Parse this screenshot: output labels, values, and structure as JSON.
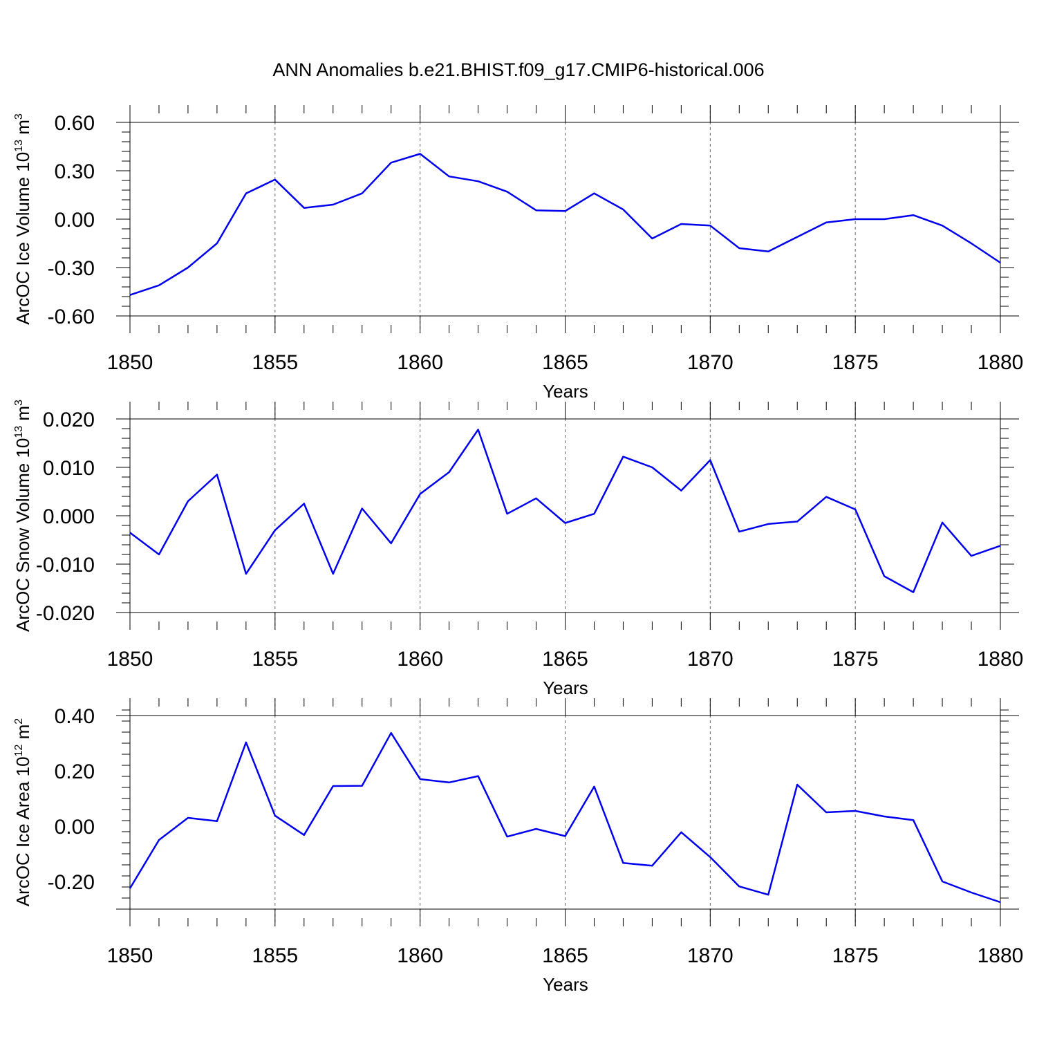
{
  "title": "ANN Anomalies b.e21.BHIST.f09_g17.CMIP6-historical.006",
  "colors": {
    "line": "#0000ee",
    "axis": "#000000",
    "grid": "#666666"
  },
  "chart_data": [
    {
      "type": "line",
      "ylabel_main": "ArcOC Ice Volume 10",
      "ylabel_exp": "13",
      "ylabel_unit": "m",
      "ylabel_unit_exp": "3",
      "xlabel": "Years",
      "xlim": [
        1850,
        1880
      ],
      "ylim": [
        -0.6,
        0.6
      ],
      "yticks": [
        "0.60",
        "0.30",
        "0.00",
        "-0.30",
        "-0.60"
      ],
      "ytick_values": [
        0.6,
        0.3,
        0.0,
        -0.3,
        -0.6
      ],
      "xticks": [
        "1850",
        "1855",
        "1860",
        "1865",
        "1870",
        "1875",
        "1880"
      ],
      "grid": "vertical dashed at major x ticks",
      "x": [
        1850,
        1851,
        1852,
        1853,
        1854,
        1855,
        1856,
        1857,
        1858,
        1859,
        1860,
        1861,
        1862,
        1863,
        1864,
        1865,
        1866,
        1867,
        1868,
        1869,
        1870,
        1871,
        1872,
        1873,
        1874,
        1875,
        1876,
        1877,
        1878,
        1879,
        1880
      ],
      "y": [
        -0.47,
        -0.41,
        -0.3,
        -0.15,
        0.16,
        0.245,
        0.07,
        0.09,
        0.16,
        0.35,
        0.405,
        0.265,
        0.235,
        0.17,
        0.055,
        0.05,
        0.16,
        0.06,
        -0.12,
        -0.03,
        -0.04,
        -0.18,
        -0.2,
        -0.11,
        -0.02,
        0.0,
        0.0,
        0.025,
        -0.04,
        -0.15,
        -0.27
      ]
    },
    {
      "type": "line",
      "ylabel_main": "ArcOC Snow Volume 10",
      "ylabel_exp": "13",
      "ylabel_unit": "m",
      "ylabel_unit_exp": "3",
      "xlabel": "Years",
      "xlim": [
        1850,
        1880
      ],
      "ylim": [
        -0.02,
        0.02
      ],
      "yticks": [
        "0.020",
        "0.010",
        "0.000",
        "-0.010",
        "-0.020"
      ],
      "ytick_values": [
        0.02,
        0.01,
        0.0,
        -0.01,
        -0.02
      ],
      "xticks": [
        "1850",
        "1855",
        "1860",
        "1865",
        "1870",
        "1875",
        "1880"
      ],
      "grid": "vertical dashed at major x ticks",
      "x": [
        1850,
        1851,
        1852,
        1853,
        1854,
        1855,
        1856,
        1857,
        1858,
        1859,
        1860,
        1861,
        1862,
        1863,
        1864,
        1865,
        1866,
        1867,
        1868,
        1869,
        1870,
        1871,
        1872,
        1873,
        1874,
        1875,
        1876,
        1877,
        1878,
        1879,
        1880
      ],
      "y": [
        -0.0035,
        -0.008,
        0.003,
        0.0085,
        -0.012,
        -0.003,
        0.0025,
        -0.012,
        0.0015,
        -0.0057,
        0.0045,
        0.009,
        0.0178,
        0.0004,
        0.0036,
        -0.0015,
        0.0004,
        0.0122,
        0.01,
        0.0052,
        0.0115,
        -0.0033,
        -0.0017,
        -0.0012,
        0.0039,
        0.0013,
        -0.0125,
        -0.0158,
        -0.0014,
        -0.0083,
        -0.0062
      ]
    },
    {
      "type": "line",
      "ylabel_main": "ArcOC Ice Area 10",
      "ylabel_exp": "12",
      "ylabel_unit": "m",
      "ylabel_unit_exp": "2",
      "xlabel": "Years",
      "xlim": [
        1850,
        1880
      ],
      "ylim": [
        -0.3,
        0.4
      ],
      "yticks": [
        "0.40",
        "0.20",
        "0.00",
        "-0.20"
      ],
      "ytick_values": [
        0.4,
        0.2,
        0.0,
        -0.2
      ],
      "xticks": [
        "1850",
        "1855",
        "1860",
        "1865",
        "1870",
        "1875",
        "1880"
      ],
      "grid": "vertical dashed at major x ticks",
      "x": [
        1850,
        1851,
        1852,
        1853,
        1854,
        1855,
        1856,
        1857,
        1858,
        1859,
        1860,
        1861,
        1862,
        1863,
        1864,
        1865,
        1866,
        1867,
        1868,
        1869,
        1870,
        1871,
        1872,
        1873,
        1874,
        1875,
        1876,
        1877,
        1878,
        1879,
        1880
      ],
      "y": [
        -0.225,
        -0.05,
        0.03,
        0.018,
        0.303,
        0.038,
        -0.032,
        0.145,
        0.146,
        0.337,
        0.17,
        0.158,
        0.181,
        -0.038,
        -0.01,
        -0.036,
        0.143,
        -0.133,
        -0.143,
        -0.022,
        -0.112,
        -0.218,
        -0.248,
        0.15,
        0.05,
        0.055,
        0.035,
        0.022,
        -0.2,
        -0.24,
        -0.275
      ]
    }
  ]
}
